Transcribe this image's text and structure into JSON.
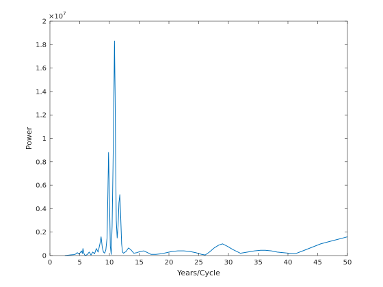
{
  "chart_data": {
    "type": "line",
    "title": "",
    "xlabel": "Years/Cycle",
    "ylabel": "Power",
    "xlim": [
      0,
      50
    ],
    "ylim": [
      0,
      20000000
    ],
    "xticks": [
      0,
      5,
      10,
      15,
      20,
      25,
      30,
      35,
      40,
      45,
      50
    ],
    "xtick_labels": [
      "0",
      "5",
      "10",
      "15",
      "20",
      "25",
      "30",
      "35",
      "40",
      "45",
      "50"
    ],
    "yticks": [
      0,
      2000000,
      4000000,
      6000000,
      8000000,
      10000000,
      12000000,
      14000000,
      16000000,
      18000000,
      20000000
    ],
    "ytick_labels": [
      "0",
      "0.2",
      "0.4",
      "0.6",
      "0.8",
      "1",
      "1.2",
      "1.4",
      "1.6",
      "1.8",
      "2"
    ],
    "y_multiplier_base": "×10",
    "y_multiplier_exp": "7",
    "grid": false,
    "line_color": "#0072BD",
    "series": [
      {
        "x": [
          2.5,
          3.0,
          3.5,
          4.0,
          4.3,
          4.6,
          4.9,
          5.1,
          5.3,
          5.45,
          5.55,
          5.7,
          5.85,
          6.0,
          6.3,
          6.6,
          6.9,
          7.2,
          7.5,
          7.8,
          8.1,
          8.4,
          8.6,
          8.8,
          9.0,
          9.2,
          9.4,
          9.6,
          9.75,
          9.85,
          10.0,
          10.15,
          10.3,
          10.45,
          10.6,
          10.75,
          10.85,
          10.95,
          11.05,
          11.15,
          11.3,
          11.45,
          11.6,
          11.75,
          11.9,
          12.05,
          12.2,
          12.35,
          12.5,
          12.8,
          13.2,
          13.6,
          14.1,
          14.6,
          15.2,
          15.8,
          16.4,
          17.0,
          17.8,
          18.7,
          19.6,
          20.5,
          21.5,
          22.5,
          23.5,
          24.5,
          25.5,
          26.1,
          26.8,
          27.6,
          28.4,
          29.0,
          29.8,
          30.8,
          32.0,
          33.2,
          34.4,
          35.4,
          36.2,
          37.2,
          38.2,
          39.2,
          40.2,
          41.2,
          42.5,
          44.0,
          45.5,
          47.0,
          48.5,
          50.0
        ],
        "values": [
          0,
          30000,
          60000,
          80000,
          120000,
          250000,
          120000,
          250000,
          400000,
          180000,
          600000,
          200000,
          50000,
          20000,
          100000,
          300000,
          50000,
          300000,
          150000,
          600000,
          300000,
          1000000,
          1600000,
          700000,
          300000,
          200000,
          500000,
          1500000,
          5500000,
          8800000,
          5000000,
          800000,
          100000,
          2500000,
          7500000,
          13500000,
          18300000,
          14000000,
          8000000,
          3000000,
          1500000,
          2500000,
          4500000,
          5200000,
          3200000,
          1000000,
          300000,
          200000,
          250000,
          350000,
          650000,
          500000,
          200000,
          250000,
          350000,
          400000,
          250000,
          100000,
          100000,
          150000,
          250000,
          350000,
          400000,
          400000,
          350000,
          250000,
          100000,
          50000,
          300000,
          650000,
          900000,
          1000000,
          800000,
          500000,
          200000,
          300000,
          400000,
          450000,
          450000,
          400000,
          300000,
          250000,
          200000,
          150000,
          400000,
          700000,
          1000000,
          1200000,
          1400000,
          1600000
        ]
      }
    ]
  }
}
